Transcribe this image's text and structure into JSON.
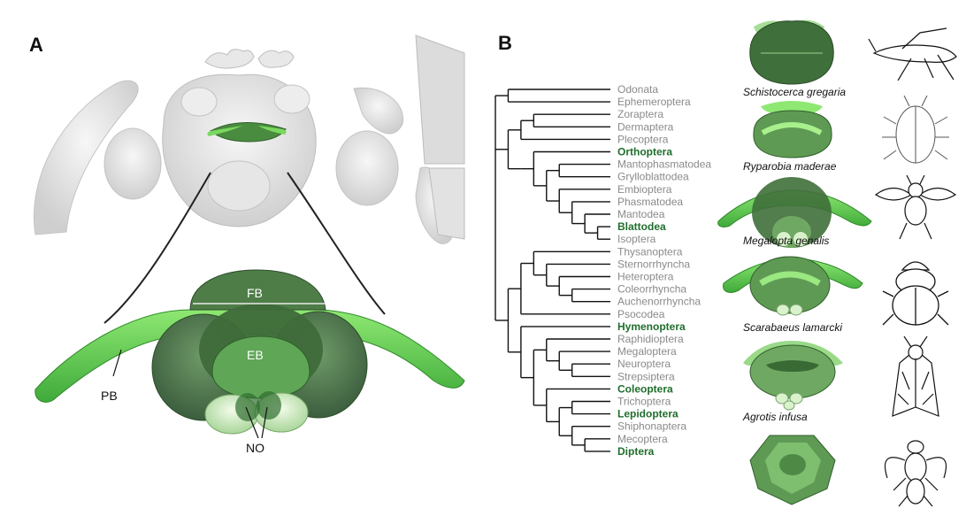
{
  "panels": {
    "a": "A",
    "b": "B"
  },
  "labels_a": {
    "fb": "FB",
    "eb": "EB",
    "pb": "PB",
    "no": "NO"
  },
  "tree": {
    "taxa": [
      {
        "name": "Odonata",
        "hl": false
      },
      {
        "name": "Ephemeroptera",
        "hl": false
      },
      {
        "name": "Zoraptera",
        "hl": false
      },
      {
        "name": "Dermaptera",
        "hl": false
      },
      {
        "name": "Plecoptera",
        "hl": false
      },
      {
        "name": "Orthoptera",
        "hl": true
      },
      {
        "name": "Mantophasmatodea",
        "hl": false
      },
      {
        "name": "Grylloblattodea",
        "hl": false
      },
      {
        "name": "Embioptera",
        "hl": false
      },
      {
        "name": "Phasmatodea",
        "hl": false
      },
      {
        "name": "Mantodea",
        "hl": false
      },
      {
        "name": "Blattodea",
        "hl": true
      },
      {
        "name": "Isoptera",
        "hl": false
      },
      {
        "name": "Thysanoptera",
        "hl": false
      },
      {
        "name": "Sternorrhyncha",
        "hl": false
      },
      {
        "name": "Heteroptera",
        "hl": false
      },
      {
        "name": "Coleorrhyncha",
        "hl": false
      },
      {
        "name": "Auchenorrhyncha",
        "hl": false
      },
      {
        "name": "Psocodea",
        "hl": false
      },
      {
        "name": "Hymenoptera",
        "hl": true
      },
      {
        "name": "Raphidioptera",
        "hl": false
      },
      {
        "name": "Megaloptera",
        "hl": false
      },
      {
        "name": "Neuroptera",
        "hl": false
      },
      {
        "name": "Strepsiptera",
        "hl": false
      },
      {
        "name": "Coleoptera",
        "hl": true
      },
      {
        "name": "Trichoptera",
        "hl": false
      },
      {
        "name": "Lepidoptera",
        "hl": true
      },
      {
        "name": "Shiphonaptera",
        "hl": false
      },
      {
        "name": "Mecoptera",
        "hl": false
      },
      {
        "name": "Diptera",
        "hl": true
      }
    ]
  },
  "species": [
    "Schistocerca gregaria",
    "Ryparobia maderae",
    "Megalopta genalis",
    "Scarabaeus lamarcki",
    "Agrotis infusa"
  ],
  "colors": {
    "highlight": "#1f6e2c",
    "taxon": "#8a8a8a",
    "bright_green": "#6fd45a",
    "dark_green": "#3f7a3a"
  }
}
